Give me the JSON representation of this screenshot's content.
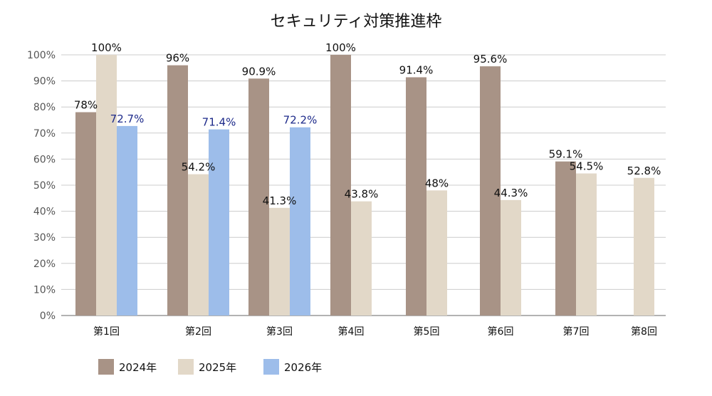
{
  "chart_data": {
    "type": "bar",
    "title": "セキュリティ対策推進枠",
    "xlabel": "",
    "ylabel": "",
    "categories": [
      "第1回",
      "第2回",
      "第3回",
      "第4回",
      "第5回",
      "第6回",
      "第7回",
      "第8回"
    ],
    "ylim": [
      0,
      100
    ],
    "yticks": [
      "0%",
      "10%",
      "20%",
      "30%",
      "40%",
      "50%",
      "60%",
      "70%",
      "80%",
      "90%",
      "100%"
    ],
    "grid": true,
    "legend_position": "bottom-left",
    "series": [
      {
        "name": "2024年",
        "color": "#a89386",
        "label_color": "#111111",
        "values": [
          78,
          96,
          90.9,
          100,
          91.4,
          95.6,
          59.1,
          null
        ],
        "labels": [
          "78%",
          "96%",
          "90.9%",
          "100%",
          "91.4%",
          "95.6%",
          "59.1%",
          ""
        ]
      },
      {
        "name": "2025年",
        "color": "#e2d8c8",
        "label_color": "#111111",
        "values": [
          100,
          54.2,
          41.3,
          43.8,
          48,
          44.3,
          54.5,
          52.8
        ],
        "labels": [
          "100%",
          "54.2%",
          "41.3%",
          "43.8%",
          "48%",
          "44.3%",
          "54.5%",
          "52.8%"
        ]
      },
      {
        "name": "2026年",
        "color": "#9dbdea",
        "label_color": "#1d2a8a",
        "values": [
          72.7,
          71.4,
          72.2,
          null,
          null,
          null,
          null,
          null
        ],
        "labels": [
          "72.7%",
          "71.4%",
          "72.2%",
          "",
          "",
          "",
          "",
          ""
        ]
      }
    ]
  }
}
